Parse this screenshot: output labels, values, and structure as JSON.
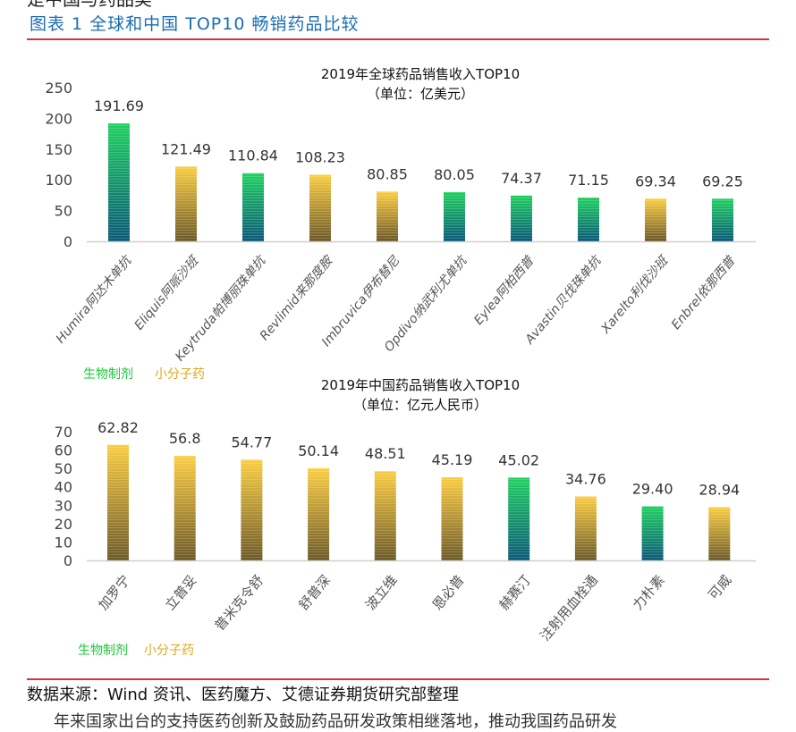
{
  "figure_title": "图表 1 全球和中国 TOP10 畅销药品比较",
  "top_cut_text": "是中国与药品美",
  "source": "数据来源：Wind 资讯、医药魔方、艾德证券期货研究部整理",
  "bottom_cut_text": "年来国家出台的支持医药创新及鼓励药品研发政策相继落地，推动我国药品研发",
  "legend": {
    "bio": "生物制剂",
    "small": "小分子药"
  },
  "colors": {
    "bio_top": "#1fd060",
    "bio_bottom": "#0a5878",
    "small_top": "#fbcd40",
    "small_bottom": "#6b5826",
    "title": "#1a6db5",
    "rule": "#c9393e"
  },
  "chart_data": [
    {
      "type": "bar",
      "title": "2019年全球药品销售收入TOP10",
      "subtitle": "（单位：亿美元）",
      "ylim": [
        0,
        250
      ],
      "yticks": [
        0,
        50,
        100,
        150,
        200,
        250
      ],
      "categories": [
        "Humira阿达木单抗",
        "Eliquis阿哌沙班",
        "Keytruda帕博丽珠单抗",
        "Revlimid来那度胺",
        "Imbruvica伊布替尼",
        "Opdivo纳武利尤单抗",
        "Eylea阿柏西普",
        "Avastin贝伐珠单抗",
        "Xarelto利伐沙班",
        "Enbrel依那西普"
      ],
      "values": [
        191.69,
        121.49,
        110.84,
        108.23,
        80.85,
        80.05,
        74.37,
        71.15,
        69.34,
        69.25
      ],
      "labels": [
        "191.69",
        "121.49",
        "110.84",
        "108.23",
        "80.85",
        "80.05",
        "74.37",
        "71.15",
        "69.34",
        "69.25"
      ],
      "kinds": [
        "bio",
        "small",
        "bio",
        "small",
        "small",
        "bio",
        "bio",
        "bio",
        "small",
        "bio"
      ]
    },
    {
      "type": "bar",
      "title": "2019年中国药品销售收入TOP10",
      "subtitle": "（单位：亿元人民币）",
      "ylim": [
        0,
        70
      ],
      "yticks": [
        0,
        10,
        20,
        30,
        40,
        50,
        60,
        70
      ],
      "categories": [
        "加罗宁",
        "立普妥",
        "普米克令舒",
        "舒普深",
        "波立维",
        "恩必普",
        "赫赛汀",
        "注射用血栓通",
        "力朴素",
        "可威"
      ],
      "values": [
        62.82,
        56.8,
        54.77,
        50.14,
        48.51,
        45.19,
        45.02,
        34.76,
        29.4,
        28.94
      ],
      "labels": [
        "62.82",
        "56.8",
        "54.77",
        "50.14",
        "48.51",
        "45.19",
        "45.02",
        "34.76",
        "29.40",
        "28.94"
      ],
      "kinds": [
        "small",
        "small",
        "small",
        "small",
        "small",
        "small",
        "bio",
        "small",
        "bio",
        "small"
      ]
    }
  ]
}
